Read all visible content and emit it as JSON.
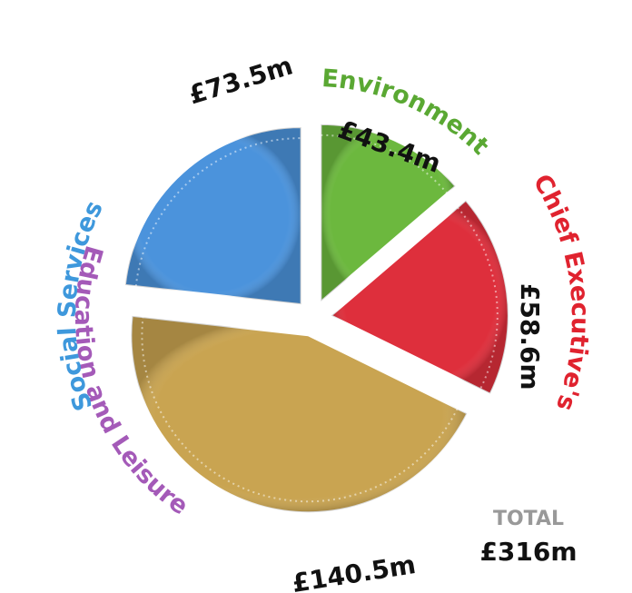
{
  "chart_data": {
    "type": "pie",
    "categories": [
      "Environment",
      "Chief Executive's",
      "Education and Leisure",
      "Social Services"
    ],
    "values": [
      43.4,
      58.6,
      140.5,
      73.5
    ],
    "value_labels": [
      "£43.4m",
      "£58.6m",
      "£140.5m",
      "£73.5m"
    ],
    "colors": [
      "#6cb83e",
      "#de2f3c",
      "#c9a451",
      "#4b93dc"
    ],
    "label_colors": [
      "#5aa833",
      "#e0232f",
      "#a45ab8",
      "#3e98dc"
    ],
    "total": {
      "label": "TOTAL",
      "value_label": "£316m"
    }
  }
}
